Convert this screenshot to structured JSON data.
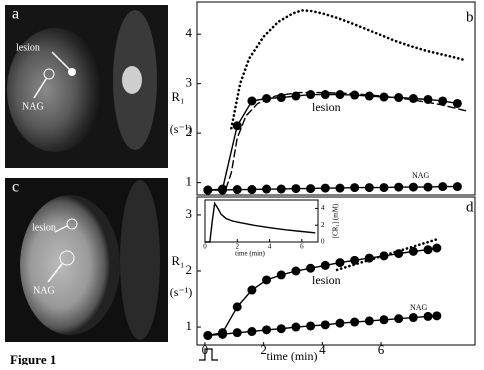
{
  "caption": "Figure 1",
  "images": [
    {
      "label": "a",
      "annotations": [
        "lesion",
        "NAG"
      ]
    },
    {
      "label": "c",
      "annotations": [
        "lesion",
        "NAG"
      ]
    }
  ],
  "chart_data": [
    {
      "type": "line",
      "label": "b",
      "ylabel": "R₁",
      "yunit": "(s⁻¹)",
      "xlim": [
        -0.27,
        9.2
      ],
      "ylim": [
        0.75,
        4.65
      ],
      "yticks": [
        1,
        2,
        3,
        4
      ],
      "annotations": [
        "lesion",
        "NAG"
      ],
      "series": [
        {
          "color": "#000",
          "linestyle": "dotted",
          "marker": "none",
          "x": [
            0.9,
            1.2,
            1.5,
            2,
            2.5,
            3,
            3.3,
            3.6,
            4,
            4.5,
            5,
            5.5,
            6,
            6.5,
            7,
            7.5,
            8,
            8.5,
            8.9
          ],
          "values": [
            2.1,
            3.0,
            3.5,
            3.95,
            4.25,
            4.42,
            4.48,
            4.47,
            4.42,
            4.33,
            4.22,
            4.1,
            3.98,
            3.86,
            3.76,
            3.67,
            3.6,
            3.53,
            3.47
          ]
        },
        {
          "color": "#000",
          "linestyle": "dashed",
          "marker": "none",
          "x": [
            0,
            0.7,
            0.9,
            1.1,
            1.4,
            1.8,
            2.4,
            3.2,
            4,
            5,
            6,
            7,
            8,
            8.9
          ],
          "values": [
            0.85,
            0.85,
            1.2,
            1.9,
            2.35,
            2.6,
            2.75,
            2.82,
            2.82,
            2.8,
            2.75,
            2.68,
            2.58,
            2.45
          ]
        },
        {
          "color": "#000",
          "linestyle": "solid",
          "marker": "circle",
          "x": [
            0.1,
            0.6,
            1.1,
            1.6,
            2.1,
            2.6,
            3.1,
            3.6,
            4.1,
            4.6,
            5.1,
            5.6,
            6.1,
            6.6,
            7.1,
            7.6,
            8.1,
            8.6
          ],
          "values": [
            0.85,
            0.87,
            2.15,
            2.65,
            2.7,
            2.72,
            2.75,
            2.78,
            2.78,
            2.78,
            2.77,
            2.75,
            2.73,
            2.72,
            2.7,
            2.68,
            2.65,
            2.6
          ]
        },
        {
          "color": "#000",
          "linestyle": "solid",
          "marker": "circle",
          "x": [
            0.1,
            0.6,
            1.1,
            1.6,
            2.1,
            2.6,
            3.1,
            3.6,
            4.1,
            4.6,
            5.1,
            5.6,
            6.1,
            6.6,
            7.1,
            7.6,
            8.1,
            8.6
          ],
          "values": [
            0.85,
            0.85,
            0.86,
            0.86,
            0.87,
            0.87,
            0.88,
            0.88,
            0.89,
            0.89,
            0.9,
            0.9,
            0.9,
            0.91,
            0.91,
            0.91,
            0.92,
            0.92
          ]
        }
      ]
    },
    {
      "type": "line",
      "label": "d",
      "ylabel": "R₁",
      "yunit": "(s⁻¹)",
      "xlabel": "time (min)",
      "xlim": [
        -0.27,
        9.2
      ],
      "ylim": [
        0.68,
        3.32
      ],
      "yticks": [
        1,
        2,
        3
      ],
      "xticks": [
        0,
        2,
        4,
        6
      ],
      "annotations": [
        "lesion",
        "NAG"
      ],
      "series": [
        {
          "color": "#000",
          "linestyle": "dotted",
          "marker": "none",
          "x": [
            4.5,
            5,
            5.5,
            6,
            6.5,
            7,
            7.5,
            8
          ],
          "values": [
            2.02,
            2.1,
            2.18,
            2.26,
            2.34,
            2.42,
            2.5,
            2.58
          ]
        },
        {
          "color": "#000",
          "linestyle": "solid",
          "marker": "circle",
          "x": [
            0.1,
            0.6,
            1.1,
            1.6,
            2.1,
            2.6,
            3.1,
            3.6,
            4.1,
            4.6,
            5.1,
            5.6,
            6.1,
            6.6,
            7.1,
            7.6,
            7.9
          ],
          "values": [
            0.85,
            0.9,
            1.36,
            1.66,
            1.84,
            1.93,
            2.0,
            2.05,
            2.1,
            2.15,
            2.19,
            2.23,
            2.27,
            2.31,
            2.35,
            2.38,
            2.41
          ]
        },
        {
          "color": "#000",
          "linestyle": "solid",
          "marker": "circle",
          "x": [
            0.1,
            0.6,
            1.1,
            1.6,
            2.1,
            2.6,
            3.1,
            3.6,
            4.1,
            4.6,
            5.1,
            5.6,
            6.1,
            6.6,
            7.1,
            7.6,
            7.9
          ],
          "values": [
            0.85,
            0.87,
            0.9,
            0.92,
            0.95,
            0.97,
            1.0,
            1.02,
            1.04,
            1.07,
            1.09,
            1.11,
            1.13,
            1.15,
            1.17,
            1.19,
            1.2
          ]
        }
      ]
    },
    {
      "type": "line",
      "xlabel": "time (min)",
      "ylabel": "[CR₁] (mM)",
      "xlim": [
        0,
        7
      ],
      "ylim": [
        0,
        5
      ],
      "xticks": [
        0,
        2,
        4,
        6
      ],
      "yticks": [
        0,
        2,
        4
      ],
      "series": [
        {
          "color": "#000",
          "linestyle": "solid",
          "marker": "none",
          "x": [
            0,
            0.3,
            0.45,
            0.6,
            0.8,
            1,
            1.3,
            1.7,
            2.2,
            3,
            4,
            5,
            6,
            6.8
          ],
          "values": [
            0,
            0,
            2.5,
            4.6,
            4.0,
            3.3,
            2.8,
            2.5,
            2.3,
            2.0,
            1.7,
            1.45,
            1.25,
            1.1
          ]
        }
      ]
    }
  ]
}
